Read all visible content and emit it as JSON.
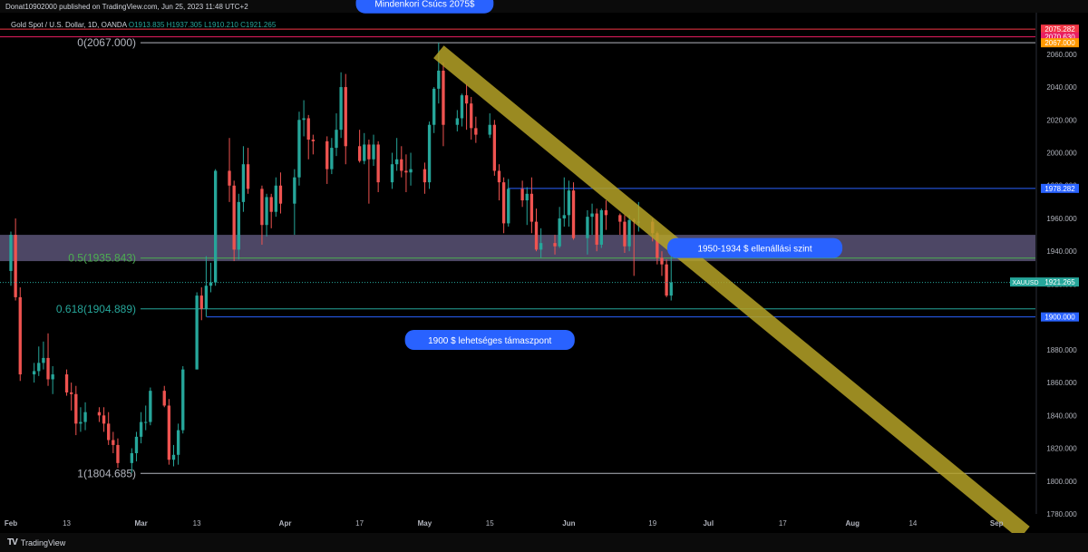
{
  "header": {
    "published_by": "Donat10902000 published on TradingView.com, Jun 25, 2023 11:48 UTC+2",
    "symbol": "Gold Spot / U.S. Dollar, 1D, OANDA",
    "open": "O1913.835",
    "high": "H1937.305",
    "low": "L1910.210",
    "close": "C1921.265"
  },
  "footer": {
    "brand": "TradingView"
  },
  "colors": {
    "up": "#26a69a",
    "down": "#ef5350",
    "trendline": "#b5a327",
    "zone": "#5b5377",
    "callout": "#2962ff"
  },
  "chart_data": {
    "type": "candlestick",
    "instrument": "XAUUSD",
    "ylim": [
      1780,
      2082
    ],
    "y_ticks": [
      1780,
      1800,
      1820,
      1840,
      1860,
      1880,
      1900,
      1920,
      1940,
      1960,
      1980,
      2000,
      2020,
      2040,
      2060
    ],
    "y_tick_labels": [
      "1780.000",
      "1800.000",
      "1820.000",
      "1840.000",
      "1860.000",
      "1880.000",
      "1900.000",
      "1920.000",
      "1940.000",
      "1960.000",
      "1980.000",
      "2000.000",
      "2020.000",
      "2040.000",
      "2060.000"
    ],
    "x_range": [
      "2023-02-01",
      "2023-09-07"
    ],
    "x_ticks": [
      {
        "date": "2023-02-01",
        "label": "Feb"
      },
      {
        "date": "2023-02-13",
        "label": "13"
      },
      {
        "date": "2023-03-01",
        "label": "Mar"
      },
      {
        "date": "2023-03-13",
        "label": "13"
      },
      {
        "date": "2023-04-01",
        "label": "Apr"
      },
      {
        "date": "2023-04-17",
        "label": "17"
      },
      {
        "date": "2023-05-01",
        "label": "May"
      },
      {
        "date": "2023-05-15",
        "label": "15"
      },
      {
        "date": "2023-06-01",
        "label": "Jun"
      },
      {
        "date": "2023-06-19",
        "label": "19"
      },
      {
        "date": "2023-07-01",
        "label": "Jul"
      },
      {
        "date": "2023-07-17",
        "label": "17"
      },
      {
        "date": "2023-08-01",
        "label": "Aug"
      },
      {
        "date": "2023-08-14",
        "label": "14"
      },
      {
        "date": "2023-09-01",
        "label": "Sep"
      }
    ],
    "candles": [
      {
        "d": "2023-02-01",
        "o": 1928,
        "h": 1952,
        "l": 1919,
        "c": 1950
      },
      {
        "d": "2023-02-02",
        "o": 1950,
        "h": 1960,
        "l": 1910,
        "c": 1912
      },
      {
        "d": "2023-02-03",
        "o": 1912,
        "h": 1918,
        "l": 1861,
        "c": 1865
      },
      {
        "d": "2023-02-06",
        "o": 1865,
        "h": 1872,
        "l": 1860,
        "c": 1867
      },
      {
        "d": "2023-02-07",
        "o": 1867,
        "h": 1882,
        "l": 1864,
        "c": 1872
      },
      {
        "d": "2023-02-08",
        "o": 1872,
        "h": 1885,
        "l": 1868,
        "c": 1875
      },
      {
        "d": "2023-02-09",
        "o": 1875,
        "h": 1890,
        "l": 1858,
        "c": 1862
      },
      {
        "d": "2023-02-10",
        "o": 1862,
        "h": 1870,
        "l": 1853,
        "c": 1865
      },
      {
        "d": "2023-02-13",
        "o": 1865,
        "h": 1868,
        "l": 1852,
        "c": 1854
      },
      {
        "d": "2023-02-14",
        "o": 1854,
        "h": 1860,
        "l": 1843,
        "c": 1853
      },
      {
        "d": "2023-02-15",
        "o": 1853,
        "h": 1858,
        "l": 1828,
        "c": 1835
      },
      {
        "d": "2023-02-16",
        "o": 1835,
        "h": 1845,
        "l": 1830,
        "c": 1836
      },
      {
        "d": "2023-02-17",
        "o": 1836,
        "h": 1848,
        "l": 1831,
        "c": 1842
      },
      {
        "d": "2023-02-20",
        "o": 1842,
        "h": 1845,
        "l": 1836,
        "c": 1840
      },
      {
        "d": "2023-02-21",
        "o": 1840,
        "h": 1845,
        "l": 1830,
        "c": 1835
      },
      {
        "d": "2023-02-22",
        "o": 1835,
        "h": 1842,
        "l": 1822,
        "c": 1825
      },
      {
        "d": "2023-02-23",
        "o": 1825,
        "h": 1830,
        "l": 1817,
        "c": 1822
      },
      {
        "d": "2023-02-24",
        "o": 1822,
        "h": 1826,
        "l": 1808,
        "c": 1811
      },
      {
        "d": "2023-02-27",
        "o": 1811,
        "h": 1820,
        "l": 1805,
        "c": 1817
      },
      {
        "d": "2023-02-28",
        "o": 1817,
        "h": 1830,
        "l": 1812,
        "c": 1827
      },
      {
        "d": "2023-03-01",
        "o": 1827,
        "h": 1842,
        "l": 1823,
        "c": 1836
      },
      {
        "d": "2023-03-02",
        "o": 1836,
        "h": 1846,
        "l": 1831,
        "c": 1836
      },
      {
        "d": "2023-03-03",
        "o": 1836,
        "h": 1857,
        "l": 1834,
        "c": 1855
      },
      {
        "d": "2023-03-06",
        "o": 1855,
        "h": 1858,
        "l": 1845,
        "c": 1846
      },
      {
        "d": "2023-03-07",
        "o": 1846,
        "h": 1850,
        "l": 1810,
        "c": 1813
      },
      {
        "d": "2023-03-08",
        "o": 1813,
        "h": 1822,
        "l": 1809,
        "c": 1816
      },
      {
        "d": "2023-03-09",
        "o": 1816,
        "h": 1835,
        "l": 1810,
        "c": 1831
      },
      {
        "d": "2023-03-10",
        "o": 1831,
        "h": 1870,
        "l": 1829,
        "c": 1868
      },
      {
        "d": "2023-03-13",
        "o": 1868,
        "h": 1915,
        "l": 1868,
        "c": 1913
      },
      {
        "d": "2023-03-14",
        "o": 1913,
        "h": 1918,
        "l": 1898,
        "c": 1905
      },
      {
        "d": "2023-03-15",
        "o": 1905,
        "h": 1937,
        "l": 1900,
        "c": 1919
      },
      {
        "d": "2023-03-16",
        "o": 1919,
        "h": 1933,
        "l": 1915,
        "c": 1921
      },
      {
        "d": "2023-03-17",
        "o": 1921,
        "h": 1990,
        "l": 1919,
        "c": 1989
      },
      {
        "d": "2023-03-20",
        "o": 1989,
        "h": 2009,
        "l": 1970,
        "c": 1980
      },
      {
        "d": "2023-03-21",
        "o": 1980,
        "h": 1983,
        "l": 1934,
        "c": 1941
      },
      {
        "d": "2023-03-22",
        "o": 1941,
        "h": 1975,
        "l": 1935,
        "c": 1970
      },
      {
        "d": "2023-03-23",
        "o": 1970,
        "h": 2004,
        "l": 1964,
        "c": 1993
      },
      {
        "d": "2023-03-24",
        "o": 1993,
        "h": 2003,
        "l": 1975,
        "c": 1978
      },
      {
        "d": "2023-03-27",
        "o": 1978,
        "h": 1980,
        "l": 1944,
        "c": 1956
      },
      {
        "d": "2023-03-28",
        "o": 1956,
        "h": 1975,
        "l": 1949,
        "c": 1973
      },
      {
        "d": "2023-03-29",
        "o": 1973,
        "h": 1975,
        "l": 1954,
        "c": 1964
      },
      {
        "d": "2023-03-30",
        "o": 1964,
        "h": 1985,
        "l": 1961,
        "c": 1980
      },
      {
        "d": "2023-03-31",
        "o": 1980,
        "h": 1988,
        "l": 1963,
        "c": 1969
      },
      {
        "d": "2023-04-03",
        "o": 1969,
        "h": 1990,
        "l": 1950,
        "c": 1985
      },
      {
        "d": "2023-04-04",
        "o": 1985,
        "h": 2025,
        "l": 1980,
        "c": 2020
      },
      {
        "d": "2023-04-05",
        "o": 2020,
        "h": 2032,
        "l": 2010,
        "c": 2021
      },
      {
        "d": "2023-04-06",
        "o": 2021,
        "h": 2023,
        "l": 1996,
        "c": 2008
      },
      {
        "d": "2023-04-07",
        "o": 2008,
        "h": 2011,
        "l": 1999,
        "c": 2007
      },
      {
        "d": "2023-04-10",
        "o": 2007,
        "h": 2010,
        "l": 1981,
        "c": 1990
      },
      {
        "d": "2023-04-11",
        "o": 1990,
        "h": 2009,
        "l": 1987,
        "c": 2003
      },
      {
        "d": "2023-04-12",
        "o": 2003,
        "h": 2024,
        "l": 1998,
        "c": 2014
      },
      {
        "d": "2023-04-13",
        "o": 2014,
        "h": 2049,
        "l": 2009,
        "c": 2040
      },
      {
        "d": "2023-04-14",
        "o": 2040,
        "h": 2048,
        "l": 1993,
        "c": 2004
      },
      {
        "d": "2023-04-17",
        "o": 2004,
        "h": 2014,
        "l": 1994,
        "c": 1995
      },
      {
        "d": "2023-04-18",
        "o": 1995,
        "h": 2012,
        "l": 1993,
        "c": 2005
      },
      {
        "d": "2023-04-19",
        "o": 2005,
        "h": 2008,
        "l": 1969,
        "c": 1996
      },
      {
        "d": "2023-04-20",
        "o": 1996,
        "h": 2011,
        "l": 1992,
        "c": 2005
      },
      {
        "d": "2023-04-21",
        "o": 2005,
        "h": 2007,
        "l": 1976,
        "c": 1982
      },
      {
        "d": "2023-04-24",
        "o": 1982,
        "h": 2000,
        "l": 1978,
        "c": 1993
      },
      {
        "d": "2023-04-25",
        "o": 1993,
        "h": 2009,
        "l": 1989,
        "c": 1996
      },
      {
        "d": "2023-04-26",
        "o": 1996,
        "h": 2004,
        "l": 1985,
        "c": 1989
      },
      {
        "d": "2023-04-27",
        "o": 1989,
        "h": 1999,
        "l": 1976,
        "c": 1988
      },
      {
        "d": "2023-04-28",
        "o": 1988,
        "h": 2000,
        "l": 1980,
        "c": 1990
      },
      {
        "d": "2023-05-01",
        "o": 1990,
        "h": 1994,
        "l": 1975,
        "c": 1982
      },
      {
        "d": "2023-05-02",
        "o": 1982,
        "h": 2019,
        "l": 1978,
        "c": 2017
      },
      {
        "d": "2023-05-03",
        "o": 2017,
        "h": 2040,
        "l": 2012,
        "c": 2039
      },
      {
        "d": "2023-05-04",
        "o": 2039,
        "h": 2067,
        "l": 2030,
        "c": 2050
      },
      {
        "d": "2023-05-05",
        "o": 2050,
        "h": 2055,
        "l": 2004,
        "c": 2017
      },
      {
        "d": "2023-05-08",
        "o": 2017,
        "h": 2026,
        "l": 2013,
        "c": 2021
      },
      {
        "d": "2023-05-09",
        "o": 2021,
        "h": 2036,
        "l": 2016,
        "c": 2035
      },
      {
        "d": "2023-05-10",
        "o": 2035,
        "h": 2042,
        "l": 2014,
        "c": 2030
      },
      {
        "d": "2023-05-11",
        "o": 2030,
        "h": 2034,
        "l": 2008,
        "c": 2015
      },
      {
        "d": "2023-05-12",
        "o": 2015,
        "h": 2022,
        "l": 2006,
        "c": 2011
      },
      {
        "d": "2023-05-15",
        "o": 2011,
        "h": 2024,
        "l": 2009,
        "c": 2017
      },
      {
        "d": "2023-05-16",
        "o": 2017,
        "h": 2020,
        "l": 1986,
        "c": 1989
      },
      {
        "d": "2023-05-17",
        "o": 1989,
        "h": 1993,
        "l": 1971,
        "c": 1982
      },
      {
        "d": "2023-05-18",
        "o": 1982,
        "h": 1985,
        "l": 1951,
        "c": 1957
      },
      {
        "d": "2023-05-19",
        "o": 1957,
        "h": 1984,
        "l": 1955,
        "c": 1978
      },
      {
        "d": "2023-05-22",
        "o": 1978,
        "h": 1983,
        "l": 1967,
        "c": 1971
      },
      {
        "d": "2023-05-23",
        "o": 1971,
        "h": 1979,
        "l": 1956,
        "c": 1975
      },
      {
        "d": "2023-05-24",
        "o": 1975,
        "h": 1985,
        "l": 1951,
        "c": 1958
      },
      {
        "d": "2023-05-25",
        "o": 1958,
        "h": 1966,
        "l": 1940,
        "c": 1941
      },
      {
        "d": "2023-05-26",
        "o": 1941,
        "h": 1954,
        "l": 1936,
        "c": 1945
      },
      {
        "d": "2023-05-29",
        "o": 1945,
        "h": 1950,
        "l": 1938,
        "c": 1943
      },
      {
        "d": "2023-05-30",
        "o": 1943,
        "h": 1967,
        "l": 1942,
        "c": 1960
      },
      {
        "d": "2023-05-31",
        "o": 1960,
        "h": 1985,
        "l": 1955,
        "c": 1962
      },
      {
        "d": "2023-06-01",
        "o": 1962,
        "h": 1983,
        "l": 1955,
        "c": 1977
      },
      {
        "d": "2023-06-02",
        "o": 1977,
        "h": 1982,
        "l": 1947,
        "c": 1948
      },
      {
        "d": "2023-06-05",
        "o": 1948,
        "h": 1965,
        "l": 1938,
        "c": 1961
      },
      {
        "d": "2023-06-06",
        "o": 1961,
        "h": 1969,
        "l": 1950,
        "c": 1963
      },
      {
        "d": "2023-06-07",
        "o": 1963,
        "h": 1966,
        "l": 1940,
        "c": 1944
      },
      {
        "d": "2023-06-08",
        "o": 1944,
        "h": 1966,
        "l": 1942,
        "c": 1965
      },
      {
        "d": "2023-06-09",
        "o": 1965,
        "h": 1971,
        "l": 1953,
        "c": 1962
      },
      {
        "d": "2023-06-12",
        "o": 1962,
        "h": 1963,
        "l": 1950,
        "c": 1958
      },
      {
        "d": "2023-06-13",
        "o": 1958,
        "h": 1962,
        "l": 1939,
        "c": 1943
      },
      {
        "d": "2023-06-14",
        "o": 1943,
        "h": 1962,
        "l": 1940,
        "c": 1959
      },
      {
        "d": "2023-06-15",
        "o": 1959,
        "h": 1960,
        "l": 1925,
        "c": 1958
      },
      {
        "d": "2023-06-16",
        "o": 1958,
        "h": 1970,
        "l": 1952,
        "c": 1958
      },
      {
        "d": "2023-06-19",
        "o": 1958,
        "h": 1960,
        "l": 1946,
        "c": 1951
      },
      {
        "d": "2023-06-20",
        "o": 1951,
        "h": 1952,
        "l": 1932,
        "c": 1936
      },
      {
        "d": "2023-06-21",
        "o": 1936,
        "h": 1940,
        "l": 1925,
        "c": 1932
      },
      {
        "d": "2023-06-22",
        "o": 1932,
        "h": 1935,
        "l": 1912,
        "c": 1913
      },
      {
        "d": "2023-06-23",
        "o": 1913,
        "h": 1937,
        "l": 1910,
        "c": 1921
      }
    ],
    "trendline": {
      "from": {
        "d": "2023-05-04",
        "p": 2067
      },
      "to": {
        "d": "2023-09-07",
        "p": 1774
      }
    },
    "fib_levels": [
      {
        "label": "0(2067.000)",
        "price": 2067.0
      },
      {
        "label": "0.5(1935.843)",
        "price": 1935.843
      },
      {
        "label": "0.618(1904.889)",
        "price": 1904.889
      },
      {
        "label": "1(1804.685)",
        "price": 1804.685
      }
    ],
    "horizontal_levels": [
      2075.282,
      2070.63,
      1978.282,
      1900.0
    ],
    "resistance_zone": {
      "top": 1950,
      "bottom": 1934
    },
    "price_labels": [
      {
        "text": "2075.282",
        "price": 2075.282,
        "color": "#f23645"
      },
      {
        "text": "2070.630",
        "price": 2070.63,
        "color": "#e91e63"
      },
      {
        "text": "2067.000",
        "price": 2067.0,
        "color": "#ff9800"
      },
      {
        "text": "1978.282",
        "price": 1978.282,
        "color": "#2962ff"
      },
      {
        "text": "1921.265",
        "price": 1921.265,
        "color": "#26a69a",
        "symbol": "XAUUSD"
      },
      {
        "text": "1900.000",
        "price": 1900.0,
        "color": "#2962ff"
      }
    ],
    "annotations": [
      {
        "text": "Mindenkori Csúcs 2075$",
        "d": "2023-05-01",
        "p": 2091
      },
      {
        "text": "1950-1934 $ ellenállási szint",
        "d": "2023-07-11",
        "p": 1942
      },
      {
        "text": "1900 $ lehetséges támaszpont",
        "d": "2023-05-15",
        "p": 1886
      }
    ]
  }
}
